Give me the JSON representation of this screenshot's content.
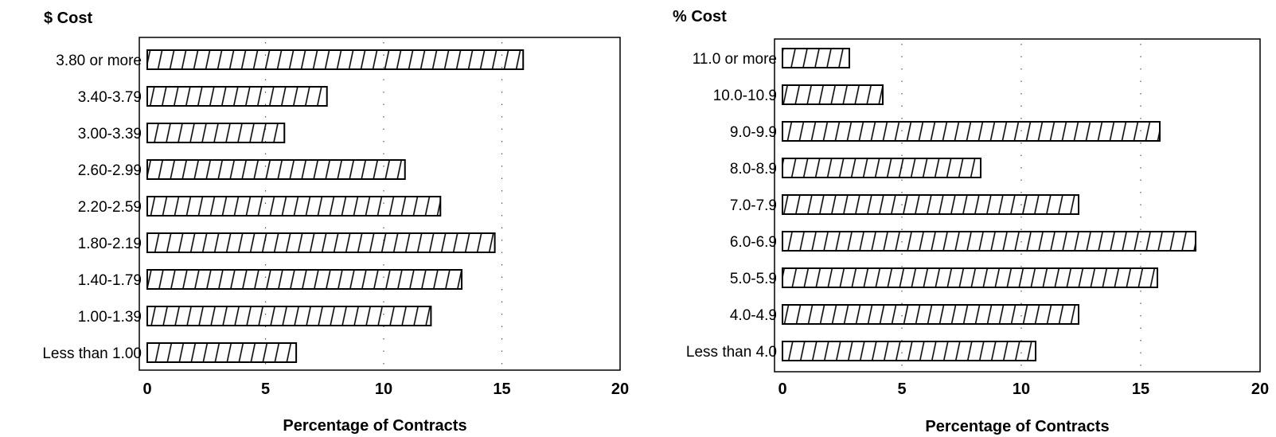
{
  "chart_data": [
    {
      "type": "bar",
      "orientation": "horizontal",
      "title": "$ Cost",
      "xlabel": "Percentage of Contracts",
      "ylabel": "",
      "xlim": [
        0,
        20
      ],
      "xticks": [
        "0",
        "5",
        "10",
        "15",
        "20"
      ],
      "categories": [
        "3.80 or more",
        "3.40-3.79",
        "3.00-3.39",
        "2.60-2.99",
        "2.20-2.59",
        "1.80-2.19",
        "1.40-1.79",
        "1.00-1.39",
        "Less than 1.00"
      ],
      "values": [
        15.9,
        7.6,
        5.8,
        10.9,
        12.4,
        14.7,
        13.3,
        12.0,
        6.3
      ],
      "grid": "dotted vertical",
      "bar_fill": "diagonal hatch",
      "bar_color": "#000000"
    },
    {
      "type": "bar",
      "orientation": "horizontal",
      "title": "% Cost",
      "xlabel": "Percentage of Contracts",
      "ylabel": "",
      "xlim": [
        0,
        20
      ],
      "xticks": [
        "0",
        "5",
        "10",
        "15",
        "20"
      ],
      "categories": [
        "11.0 or more",
        "10.0-10.9",
        "9.0-9.9",
        "8.0-8.9",
        "7.0-7.9",
        "6.0-6.9",
        "5.0-5.9",
        "4.0-4.9",
        "Less than 4.0"
      ],
      "values": [
        2.8,
        4.2,
        15.8,
        8.3,
        12.4,
        17.3,
        15.7,
        12.4,
        10.6
      ],
      "grid": "dotted vertical",
      "bar_fill": "diagonal hatch",
      "bar_color": "#000000"
    }
  ]
}
